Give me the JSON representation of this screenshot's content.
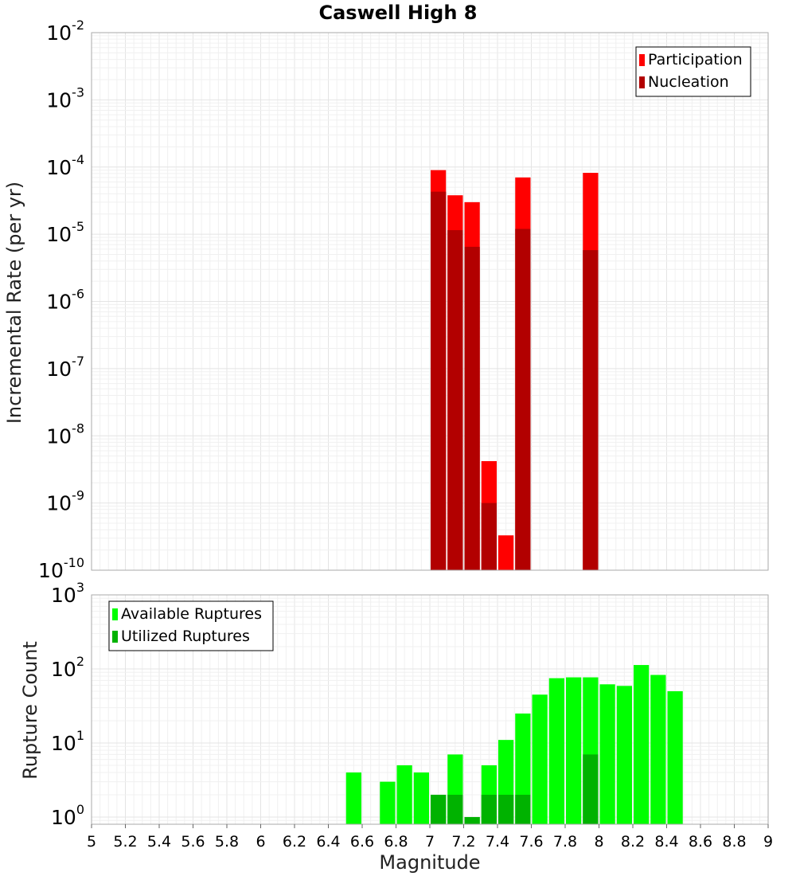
{
  "chart_data": [
    {
      "type": "bar",
      "title": "Caswell High 8",
      "ylabel": "Incremental Rate (per yr)",
      "yscale": "log",
      "ylim": [
        1e-10,
        0.01
      ],
      "y_ticks": [
        {
          "base": "10",
          "exp": "-10"
        },
        {
          "base": "10",
          "exp": "-9"
        },
        {
          "base": "10",
          "exp": "-8"
        },
        {
          "base": "10",
          "exp": "-7"
        },
        {
          "base": "10",
          "exp": "-6"
        },
        {
          "base": "10",
          "exp": "-5"
        },
        {
          "base": "10",
          "exp": "-4"
        },
        {
          "base": "10",
          "exp": "-3"
        },
        {
          "base": "10",
          "exp": "-2"
        }
      ],
      "legend_position": "top-right",
      "bar_width": 0.1,
      "grid": true,
      "series": [
        {
          "name": "Participation",
          "color": "#ff0000",
          "points": [
            {
              "x": 7.05,
              "y": 9e-05
            },
            {
              "x": 7.15,
              "y": 3.8e-05
            },
            {
              "x": 7.25,
              "y": 3e-05
            },
            {
              "x": 7.35,
              "y": 4.2e-09
            },
            {
              "x": 7.45,
              "y": 3.3e-10
            },
            {
              "x": 7.55,
              "y": 7e-05
            },
            {
              "x": 7.95,
              "y": 8.2e-05
            }
          ]
        },
        {
          "name": "Nucleation",
          "color": "#b20000",
          "points": [
            {
              "x": 7.05,
              "y": 4.3e-05
            },
            {
              "x": 7.15,
              "y": 1.15e-05
            },
            {
              "x": 7.25,
              "y": 6.5e-06
            },
            {
              "x": 7.35,
              "y": 1e-09
            },
            {
              "x": 7.55,
              "y": 1.2e-05
            },
            {
              "x": 7.95,
              "y": 5.8e-06
            }
          ]
        }
      ]
    },
    {
      "type": "bar",
      "ylabel": "Rupture Count",
      "xlabel": "Magnitude",
      "yscale": "log",
      "ylim": [
        0.8,
        1000
      ],
      "y_ticks": [
        {
          "base": "10",
          "exp": "0"
        },
        {
          "base": "10",
          "exp": "1"
        },
        {
          "base": "10",
          "exp": "2"
        },
        {
          "base": "10",
          "exp": "3"
        }
      ],
      "xlim": [
        5,
        9
      ],
      "x_ticks": [
        "5",
        "5.2",
        "5.4",
        "5.6",
        "5.8",
        "6",
        "6.2",
        "6.4",
        "6.6",
        "6.8",
        "7",
        "7.2",
        "7.4",
        "7.6",
        "7.8",
        "8",
        "8.2",
        "8.4",
        "8.6",
        "8.8",
        "9"
      ],
      "legend_position": "top-left",
      "bar_width": 0.1,
      "grid": true,
      "series": [
        {
          "name": "Available Ruptures",
          "color": "#00ff00",
          "points": [
            {
              "x": 6.55,
              "y": 4
            },
            {
              "x": 6.75,
              "y": 3
            },
            {
              "x": 6.85,
              "y": 5
            },
            {
              "x": 6.95,
              "y": 4
            },
            {
              "x": 7.05,
              "y": 2
            },
            {
              "x": 7.15,
              "y": 7
            },
            {
              "x": 7.25,
              "y": 1
            },
            {
              "x": 7.35,
              "y": 5
            },
            {
              "x": 7.45,
              "y": 11
            },
            {
              "x": 7.55,
              "y": 25
            },
            {
              "x": 7.65,
              "y": 45
            },
            {
              "x": 7.75,
              "y": 75
            },
            {
              "x": 7.85,
              "y": 77
            },
            {
              "x": 7.95,
              "y": 77
            },
            {
              "x": 8.05,
              "y": 62
            },
            {
              "x": 8.15,
              "y": 59
            },
            {
              "x": 8.25,
              "y": 113
            },
            {
              "x": 8.35,
              "y": 83
            },
            {
              "x": 8.45,
              "y": 50
            }
          ]
        },
        {
          "name": "Utilized Ruptures",
          "color": "#00b200",
          "points": [
            {
              "x": 7.05,
              "y": 2
            },
            {
              "x": 7.15,
              "y": 2
            },
            {
              "x": 7.25,
              "y": 1
            },
            {
              "x": 7.35,
              "y": 2
            },
            {
              "x": 7.45,
              "y": 2
            },
            {
              "x": 7.55,
              "y": 2
            },
            {
              "x": 7.95,
              "y": 7
            }
          ]
        }
      ]
    }
  ]
}
